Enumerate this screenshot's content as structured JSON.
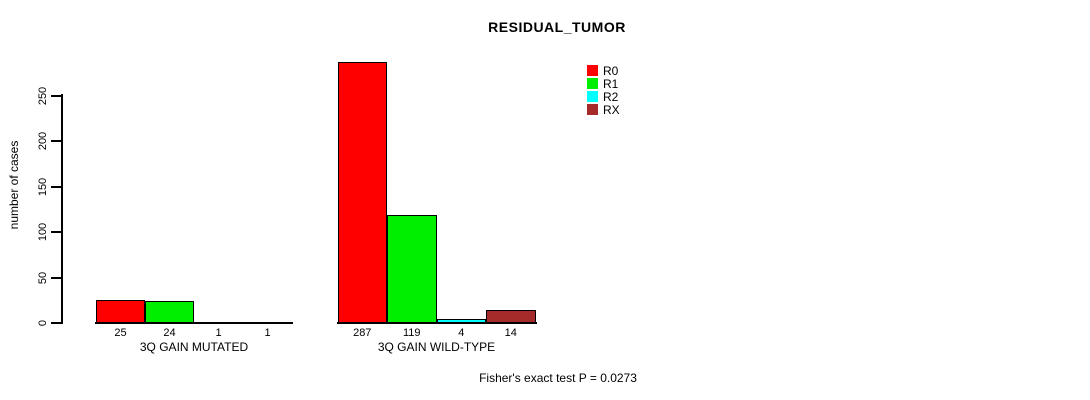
{
  "chart_data": {
    "type": "bar",
    "title": "RESIDUAL_TUMOR",
    "ylabel": "number of cases",
    "footer": "Fisher's exact test P = 0.0273",
    "yticks": [
      0,
      50,
      100,
      150,
      200,
      250
    ],
    "ylim": [
      0,
      290
    ],
    "grid": false,
    "legend_position": "top-right",
    "categories": [
      "3Q GAIN MUTATED",
      "3Q GAIN WILD-TYPE"
    ],
    "series": [
      {
        "name": "R0",
        "color": "#ff0000",
        "values": [
          25,
          287
        ]
      },
      {
        "name": "R1",
        "color": "#00ee00",
        "values": [
          24,
          119
        ]
      },
      {
        "name": "R2",
        "color": "#00ffff",
        "values": [
          1,
          4
        ]
      },
      {
        "name": "RX",
        "color": "#a52a2a",
        "values": [
          1,
          14
        ]
      }
    ]
  }
}
